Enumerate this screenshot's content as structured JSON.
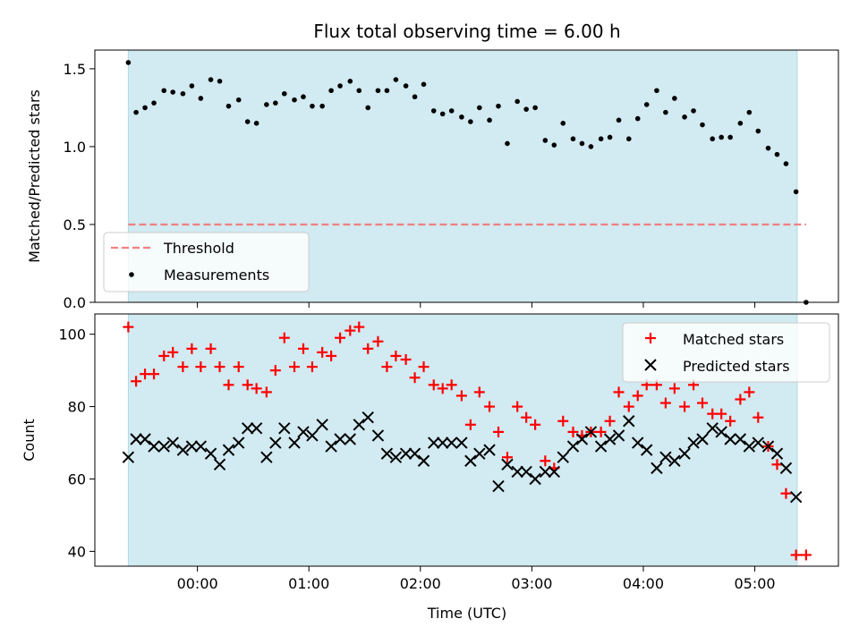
{
  "colors": {
    "shade": "#add8e6",
    "threshold": "#f08080",
    "measurement": "#000000",
    "matched": "#ff0000",
    "predicted": "#000000"
  },
  "chart_data": [
    {
      "type": "scatter",
      "title": "Flux total observing time = 6.00 h",
      "xlabel": "",
      "ylabel": "Matched/Predicted stars",
      "xlim": [
        -0.92,
        5.75
      ],
      "ylim": [
        0,
        1.62
      ],
      "x_ticks": [
        "00:00",
        "01:00",
        "02:00",
        "03:00",
        "04:00",
        "05:00"
      ],
      "x_tick_values": [
        0,
        1,
        2,
        3,
        4,
        5
      ],
      "y_ticks": [
        "0.0",
        "0.5",
        "1.0",
        "1.5"
      ],
      "y_tick_values": [
        0,
        0.5,
        1.0,
        1.5
      ],
      "shaded_span": [
        -0.62,
        5.38
      ],
      "threshold": {
        "name": "Threshold",
        "value": 0.5,
        "x_range": [
          -0.62,
          5.46
        ],
        "style": "dashed"
      },
      "legend": {
        "position": "lower-left",
        "entries": [
          "Threshold",
          "Measurements"
        ]
      },
      "series": [
        {
          "name": "Measurements",
          "x": [
            -0.62,
            -0.55,
            -0.47,
            -0.39,
            -0.3,
            -0.22,
            -0.13,
            -0.05,
            0.03,
            0.12,
            0.2,
            0.28,
            0.37,
            0.45,
            0.53,
            0.62,
            0.7,
            0.78,
            0.87,
            0.95,
            1.03,
            1.12,
            1.2,
            1.28,
            1.37,
            1.45,
            1.53,
            1.62,
            1.7,
            1.78,
            1.87,
            1.95,
            2.03,
            2.12,
            2.2,
            2.28,
            2.37,
            2.45,
            2.53,
            2.62,
            2.7,
            2.78,
            2.87,
            2.95,
            3.03,
            3.12,
            3.2,
            3.28,
            3.37,
            3.45,
            3.53,
            3.62,
            3.7,
            3.78,
            3.87,
            3.95,
            4.03,
            4.12,
            4.2,
            4.28,
            4.37,
            4.45,
            4.53,
            4.62,
            4.7,
            4.78,
            4.87,
            4.95,
            5.03,
            5.12,
            5.2,
            5.28,
            5.37,
            5.46
          ],
          "y": [
            1.54,
            1.22,
            1.25,
            1.28,
            1.36,
            1.35,
            1.34,
            1.39,
            1.31,
            1.43,
            1.42,
            1.26,
            1.3,
            1.16,
            1.15,
            1.27,
            1.28,
            1.34,
            1.3,
            1.32,
            1.26,
            1.26,
            1.36,
            1.39,
            1.42,
            1.36,
            1.25,
            1.36,
            1.36,
            1.43,
            1.39,
            1.32,
            1.4,
            1.23,
            1.21,
            1.23,
            1.19,
            1.16,
            1.25,
            1.17,
            1.26,
            1.02,
            1.29,
            1.24,
            1.25,
            1.04,
            1.01,
            1.15,
            1.05,
            1.02,
            1.0,
            1.05,
            1.06,
            1.17,
            1.05,
            1.18,
            1.27,
            1.36,
            1.22,
            1.31,
            1.19,
            1.23,
            1.14,
            1.05,
            1.06,
            1.06,
            1.15,
            1.22,
            1.1,
            0.99,
            0.95,
            0.89,
            0.71,
            0.0
          ]
        }
      ]
    },
    {
      "type": "scatter",
      "title": "",
      "xlabel": "Time (UTC)",
      "ylabel": "Count",
      "xlim": [
        -0.92,
        5.75
      ],
      "ylim": [
        35.9,
        105.6
      ],
      "x_ticks": [
        "00:00",
        "01:00",
        "02:00",
        "03:00",
        "04:00",
        "05:00"
      ],
      "x_tick_values": [
        0,
        1,
        2,
        3,
        4,
        5
      ],
      "y_ticks": [
        "40",
        "60",
        "80",
        "100"
      ],
      "y_tick_values": [
        40,
        60,
        80,
        100
      ],
      "shaded_span": [
        -0.62,
        5.38
      ],
      "legend": {
        "position": "top-right",
        "entries": [
          "Matched stars",
          "Predicted stars"
        ]
      },
      "series": [
        {
          "name": "Matched stars",
          "marker": "plus",
          "x": [
            -0.62,
            -0.55,
            -0.47,
            -0.39,
            -0.3,
            -0.22,
            -0.13,
            -0.05,
            0.03,
            0.12,
            0.2,
            0.28,
            0.37,
            0.45,
            0.53,
            0.62,
            0.7,
            0.78,
            0.87,
            0.95,
            1.03,
            1.12,
            1.2,
            1.28,
            1.37,
            1.45,
            1.53,
            1.62,
            1.7,
            1.78,
            1.87,
            1.95,
            2.03,
            2.12,
            2.2,
            2.28,
            2.37,
            2.45,
            2.53,
            2.62,
            2.7,
            2.78,
            2.87,
            2.95,
            3.03,
            3.12,
            3.2,
            3.28,
            3.37,
            3.45,
            3.53,
            3.62,
            3.7,
            3.78,
            3.87,
            3.95,
            4.03,
            4.12,
            4.2,
            4.28,
            4.37,
            4.45,
            4.53,
            4.62,
            4.7,
            4.78,
            4.87,
            4.95,
            5.03,
            5.12,
            5.2,
            5.28,
            5.37,
            5.46
          ],
          "y": [
            102,
            87,
            89,
            89,
            94,
            95,
            91,
            96,
            91,
            96,
            91,
            86,
            91,
            86,
            85,
            84,
            90,
            99,
            91,
            96,
            91,
            95,
            94,
            99,
            101,
            102,
            96,
            98,
            91,
            94,
            93,
            88,
            91,
            86,
            85,
            86,
            83,
            75,
            84,
            80,
            73,
            66,
            80,
            77,
            75,
            65,
            63,
            76,
            73,
            72,
            73,
            73,
            76,
            84,
            80,
            83,
            86,
            86,
            81,
            85,
            80,
            86,
            81,
            78,
            78,
            76,
            82,
            84,
            77,
            69,
            64,
            56,
            39,
            39
          ]
        },
        {
          "name": "Predicted stars",
          "marker": "x",
          "x": [
            -0.62,
            -0.55,
            -0.47,
            -0.39,
            -0.3,
            -0.22,
            -0.13,
            -0.05,
            0.03,
            0.12,
            0.2,
            0.28,
            0.37,
            0.45,
            0.53,
            0.62,
            0.7,
            0.78,
            0.87,
            0.95,
            1.03,
            1.12,
            1.2,
            1.28,
            1.37,
            1.45,
            1.53,
            1.62,
            1.7,
            1.78,
            1.87,
            1.95,
            2.03,
            2.12,
            2.2,
            2.28,
            2.37,
            2.45,
            2.53,
            2.62,
            2.7,
            2.78,
            2.87,
            2.95,
            3.03,
            3.12,
            3.2,
            3.28,
            3.37,
            3.45,
            3.53,
            3.62,
            3.7,
            3.78,
            3.87,
            3.95,
            4.03,
            4.12,
            4.2,
            4.28,
            4.37,
            4.45,
            4.53,
            4.62,
            4.7,
            4.78,
            4.87,
            4.95,
            5.03,
            5.12,
            5.2,
            5.28,
            5.37
          ],
          "y": [
            66,
            71,
            71,
            69,
            69,
            70,
            68,
            69,
            69,
            67,
            64,
            68,
            70,
            74,
            74,
            66,
            70,
            74,
            70,
            73,
            72,
            75,
            69,
            71,
            71,
            75,
            77,
            72,
            67,
            66,
            67,
            67,
            65,
            70,
            70,
            70,
            70,
            65,
            67,
            68,
            58,
            64,
            62,
            62,
            60,
            62,
            62,
            66,
            69,
            71,
            73,
            69,
            71,
            72,
            76,
            70,
            68,
            63,
            66,
            65,
            67,
            70,
            71,
            74,
            73,
            71,
            71,
            69,
            70,
            69,
            67,
            63,
            55
          ]
        }
      ]
    }
  ]
}
